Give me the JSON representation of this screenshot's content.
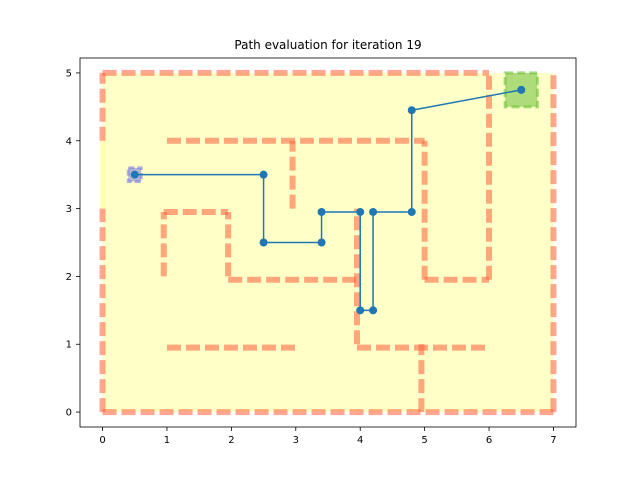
{
  "chart_data": {
    "type": "line",
    "title": "Path evaluation for iteration 19",
    "xlabel": "",
    "ylabel": "",
    "xlim": [
      -0.35,
      7.35
    ],
    "ylim": [
      -0.22,
      5.22
    ],
    "xticks": [
      "0",
      "1",
      "2",
      "3",
      "4",
      "5",
      "6",
      "7"
    ],
    "yticks": [
      "0",
      "1",
      "2",
      "3",
      "4",
      "5"
    ],
    "grid": false,
    "colors": {
      "background": "#ffffc8",
      "wall": "#ff5e3a",
      "start": "#7b7be0",
      "goal": "#6ebf3a",
      "path": "#1f77b4",
      "gap": "#ffff99"
    },
    "free_region": {
      "x": [
        0,
        7
      ],
      "y": [
        0,
        5
      ]
    },
    "walls": [
      {
        "x": [
          0,
          6
        ],
        "y": [
          5,
          5
        ]
      },
      {
        "x": [
          0,
          7
        ],
        "y": [
          0,
          0
        ]
      },
      {
        "x": [
          0,
          0
        ],
        "y": [
          4.0,
          5
        ]
      },
      {
        "x": [
          0,
          0
        ],
        "y": [
          0,
          3.0
        ]
      },
      {
        "x": [
          7,
          7
        ],
        "y": [
          0,
          5
        ]
      },
      {
        "x": [
          6,
          6
        ],
        "y": [
          1.95,
          5
        ]
      },
      {
        "x": [
          5,
          6
        ],
        "y": [
          1.95,
          1.95
        ]
      },
      {
        "x": [
          5,
          5
        ],
        "y": [
          1.95,
          4
        ]
      },
      {
        "x": [
          1,
          5
        ],
        "y": [
          4,
          4
        ]
      },
      {
        "x": [
          2.95,
          2.95
        ],
        "y": [
          3.0,
          4
        ]
      },
      {
        "x": [
          0.95,
          1.95
        ],
        "y": [
          2.95,
          2.95
        ]
      },
      {
        "x": [
          0.95,
          0.95
        ],
        "y": [
          2.0,
          2.95
        ]
      },
      {
        "x": [
          1.95,
          1.95
        ],
        "y": [
          2.0,
          2.95
        ]
      },
      {
        "x": [
          1.95,
          3.95
        ],
        "y": [
          1.95,
          1.95
        ]
      },
      {
        "x": [
          3.95,
          3.95
        ],
        "y": [
          1.0,
          3.0
        ]
      },
      {
        "x": [
          3.95,
          6
        ],
        "y": [
          0.95,
          0.95
        ]
      },
      {
        "x": [
          1,
          3
        ],
        "y": [
          0.95,
          0.95
        ]
      },
      {
        "x": [
          4.95,
          4.95
        ],
        "y": [
          0,
          1.0
        ]
      }
    ],
    "start": {
      "x": 0.5,
      "y": 3.5
    },
    "goal": {
      "x": 6.5,
      "y": 4.75
    },
    "series": [
      {
        "x": [
          0.5,
          2.5,
          2.5,
          3.4,
          3.4,
          4.0,
          4.0,
          4.2,
          4.2,
          4.8,
          4.8,
          6.5
        ],
        "y": [
          3.5,
          3.5,
          2.5,
          2.5,
          2.95,
          2.95,
          1.5,
          1.5,
          2.95,
          2.95,
          4.45,
          4.75
        ]
      }
    ]
  }
}
